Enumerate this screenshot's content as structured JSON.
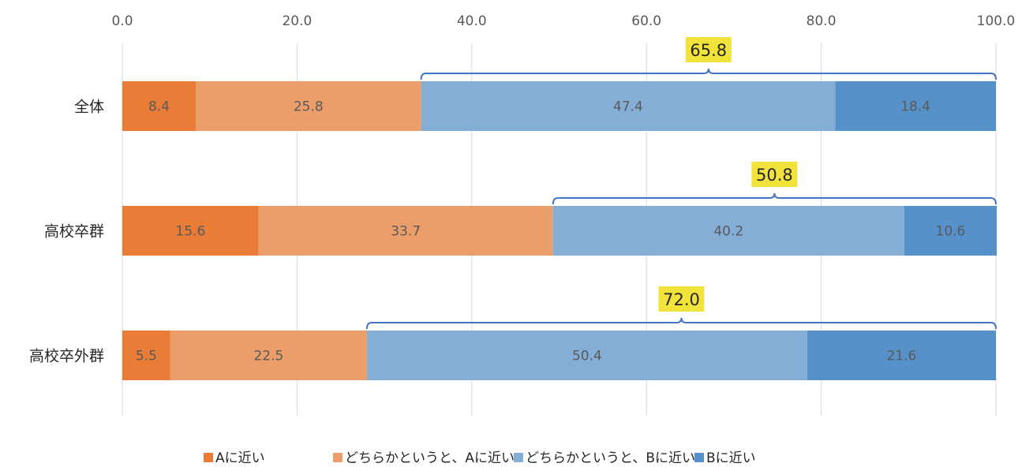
{
  "chart_data": {
    "type": "bar",
    "orientation": "horizontal",
    "stacked": true,
    "categories": [
      "全体",
      "高校卒群",
      "高校卒外群"
    ],
    "series": [
      {
        "name": "Aに近い",
        "color": "#E97D37",
        "values": [
          8.4,
          15.6,
          5.5
        ]
      },
      {
        "name": "どちらかというと、Aに近い",
        "color": "#EC9E6A",
        "values": [
          25.8,
          33.7,
          22.5
        ]
      },
      {
        "name": "どちらかというと、Bに近い",
        "color": "#85AED7",
        "values": [
          47.4,
          40.2,
          50.4
        ]
      },
      {
        "name": "Bに近い",
        "color": "#5692C9",
        "values": [
          18.4,
          10.6,
          21.6
        ]
      }
    ],
    "bracket_totals": [
      "65.8",
      "50.8",
      "72.0"
    ],
    "axis_ticks": [
      "0.0",
      "20.0",
      "40.0",
      "60.0",
      "80.0",
      "100.0"
    ],
    "xlim": [
      0,
      100
    ],
    "axis_position": "top",
    "grid": true,
    "legend_position": "bottom",
    "colors": {
      "bracket": "#4472C4",
      "highlight": "#F2E33B",
      "grid": "#D9D9D9"
    }
  }
}
